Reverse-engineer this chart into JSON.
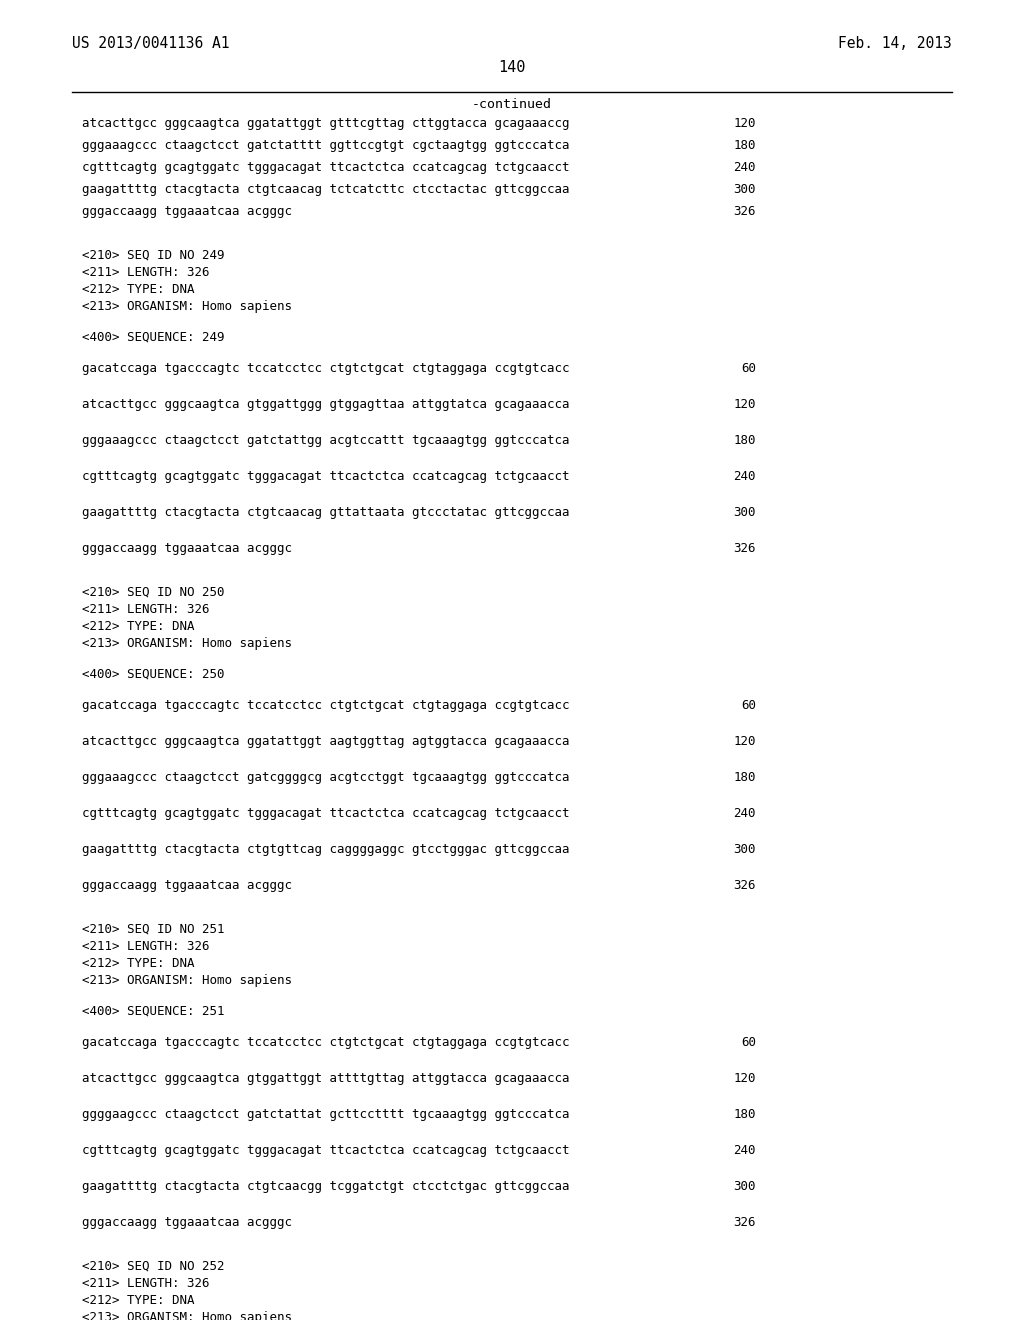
{
  "page_number": "140",
  "left_header": "US 2013/0041136 A1",
  "right_header": "Feb. 14, 2013",
  "continued_label": "-continued",
  "background_color": "#ffffff",
  "text_color": "#000000",
  "lines": [
    {
      "text": "atcacttgcc gggcaagtca ggatattggt gtttcgttag cttggtacca gcagaaaccg",
      "num": "120",
      "type": "seq"
    },
    {
      "text": "gggaaagccc ctaagctcct gatctatttt ggttccgtgt cgctaagtgg ggtcccatca",
      "num": "180",
      "type": "seq"
    },
    {
      "text": "cgtttcagtg gcagtggatc tgggacagat ttcactctca ccatcagcag tctgcaacct",
      "num": "240",
      "type": "seq"
    },
    {
      "text": "gaagattttg ctacgtacta ctgtcaacag tctcatcttc ctcctactac gttcggccaa",
      "num": "300",
      "type": "seq"
    },
    {
      "text": "gggaccaagg tggaaatcaa acgggc",
      "num": "326",
      "type": "seq"
    },
    {
      "text": "",
      "type": "blank_large"
    },
    {
      "text": "<210> SEQ ID NO 249",
      "type": "meta"
    },
    {
      "text": "<211> LENGTH: 326",
      "type": "meta"
    },
    {
      "text": "<212> TYPE: DNA",
      "type": "meta"
    },
    {
      "text": "<213> ORGANISM: Homo sapiens",
      "type": "meta"
    },
    {
      "text": "",
      "type": "blank_medium"
    },
    {
      "text": "<400> SEQUENCE: 249",
      "type": "meta"
    },
    {
      "text": "",
      "type": "blank_medium"
    },
    {
      "text": "gacatccaga tgacccagtc tccatcctcc ctgtctgcat ctgtaggaga ccgtgtcacc",
      "num": "60",
      "type": "seq"
    },
    {
      "text": "",
      "type": "blank_medium"
    },
    {
      "text": "atcacttgcc gggcaagtca gtggattggg gtggagttaa attggtatca gcagaaacca",
      "num": "120",
      "type": "seq"
    },
    {
      "text": "",
      "type": "blank_medium"
    },
    {
      "text": "gggaaagccc ctaagctcct gatctattgg acgtccattt tgcaaagtgg ggtcccatca",
      "num": "180",
      "type": "seq"
    },
    {
      "text": "",
      "type": "blank_medium"
    },
    {
      "text": "cgtttcagtg gcagtggatc tgggacagat ttcactctca ccatcagcag tctgcaacct",
      "num": "240",
      "type": "seq"
    },
    {
      "text": "",
      "type": "blank_medium"
    },
    {
      "text": "gaagattttg ctacgtacta ctgtcaacag gttattaata gtccctatac gttcggccaa",
      "num": "300",
      "type": "seq"
    },
    {
      "text": "",
      "type": "blank_medium"
    },
    {
      "text": "gggaccaagg tggaaatcaa acgggc",
      "num": "326",
      "type": "seq"
    },
    {
      "text": "",
      "type": "blank_large"
    },
    {
      "text": "<210> SEQ ID NO 250",
      "type": "meta"
    },
    {
      "text": "<211> LENGTH: 326",
      "type": "meta"
    },
    {
      "text": "<212> TYPE: DNA",
      "type": "meta"
    },
    {
      "text": "<213> ORGANISM: Homo sapiens",
      "type": "meta"
    },
    {
      "text": "",
      "type": "blank_medium"
    },
    {
      "text": "<400> SEQUENCE: 250",
      "type": "meta"
    },
    {
      "text": "",
      "type": "blank_medium"
    },
    {
      "text": "gacatccaga tgacccagtc tccatcctcc ctgtctgcat ctgtaggaga ccgtgtcacc",
      "num": "60",
      "type": "seq"
    },
    {
      "text": "",
      "type": "blank_medium"
    },
    {
      "text": "atcacttgcc gggcaagtca ggatattggt aagtggttag agtggtacca gcagaaacca",
      "num": "120",
      "type": "seq"
    },
    {
      "text": "",
      "type": "blank_medium"
    },
    {
      "text": "gggaaagccc ctaagctcct gatcggggcg acgtcctggt tgcaaagtgg ggtcccatca",
      "num": "180",
      "type": "seq"
    },
    {
      "text": "",
      "type": "blank_medium"
    },
    {
      "text": "cgtttcagtg gcagtggatc tgggacagat ttcactctca ccatcagcag tctgcaacct",
      "num": "240",
      "type": "seq"
    },
    {
      "text": "",
      "type": "blank_medium"
    },
    {
      "text": "gaagattttg ctacgtacta ctgtgttcag caggggaggc gtcctgggac gttcggccaa",
      "num": "300",
      "type": "seq"
    },
    {
      "text": "",
      "type": "blank_medium"
    },
    {
      "text": "gggaccaagg tggaaatcaa acgggc",
      "num": "326",
      "type": "seq"
    },
    {
      "text": "",
      "type": "blank_large"
    },
    {
      "text": "<210> SEQ ID NO 251",
      "type": "meta"
    },
    {
      "text": "<211> LENGTH: 326",
      "type": "meta"
    },
    {
      "text": "<212> TYPE: DNA",
      "type": "meta"
    },
    {
      "text": "<213> ORGANISM: Homo sapiens",
      "type": "meta"
    },
    {
      "text": "",
      "type": "blank_medium"
    },
    {
      "text": "<400> SEQUENCE: 251",
      "type": "meta"
    },
    {
      "text": "",
      "type": "blank_medium"
    },
    {
      "text": "gacatccaga tgacccagtc tccatcctcc ctgtctgcat ctgtaggaga ccgtgtcacc",
      "num": "60",
      "type": "seq"
    },
    {
      "text": "",
      "type": "blank_medium"
    },
    {
      "text": "atcacttgcc gggcaagtca gtggattggt attttgttag attggtacca gcagaaacca",
      "num": "120",
      "type": "seq"
    },
    {
      "text": "",
      "type": "blank_medium"
    },
    {
      "text": "ggggaagccc ctaagctcct gatctattat gcttcctttt tgcaaagtgg ggtcccatca",
      "num": "180",
      "type": "seq"
    },
    {
      "text": "",
      "type": "blank_medium"
    },
    {
      "text": "cgtttcagtg gcagtggatc tgggacagat ttcactctca ccatcagcag tctgcaacct",
      "num": "240",
      "type": "seq"
    },
    {
      "text": "",
      "type": "blank_medium"
    },
    {
      "text": "gaagattttg ctacgtacta ctgtcaacgg tcggatctgt ctcctctgac gttcggccaa",
      "num": "300",
      "type": "seq"
    },
    {
      "text": "",
      "type": "blank_medium"
    },
    {
      "text": "gggaccaagg tggaaatcaa acgggc",
      "num": "326",
      "type": "seq"
    },
    {
      "text": "",
      "type": "blank_large"
    },
    {
      "text": "<210> SEQ ID NO 252",
      "type": "meta"
    },
    {
      "text": "<211> LENGTH: 326",
      "type": "meta"
    },
    {
      "text": "<212> TYPE: DNA",
      "type": "meta"
    },
    {
      "text": "<213> ORGANISM: Homo sapiens",
      "type": "meta"
    }
  ]
}
